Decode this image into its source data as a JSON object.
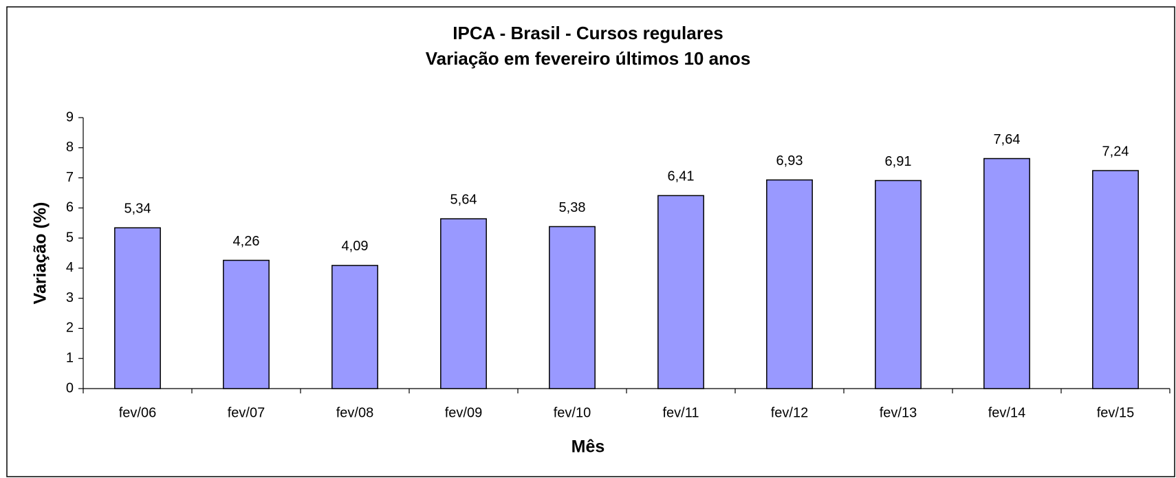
{
  "chart_data": {
    "type": "bar",
    "title": "IPCA - Brasil - Cursos regulares",
    "subtitle": "Variação em fevereiro últimos 10 anos",
    "x_label": "Mês",
    "y_label": "Variação (%)",
    "categories": [
      "fev/06",
      "fev/07",
      "fev/08",
      "fev/09",
      "fev/10",
      "fev/11",
      "fev/12",
      "fev/13",
      "fev/14",
      "fev/15"
    ],
    "values": [
      5.34,
      4.26,
      4.09,
      5.64,
      5.38,
      6.41,
      6.93,
      6.91,
      7.64,
      7.24
    ],
    "value_labels": [
      "5,34",
      "4,26",
      "4,09",
      "5,64",
      "5,38",
      "6,41",
      "6,93",
      "6,91",
      "7,64",
      "7,24"
    ],
    "color": "#9999ff",
    "ylim": [
      0,
      9
    ],
    "yticks": [
      0,
      1,
      2,
      3,
      4,
      5,
      6,
      7,
      8,
      9
    ],
    "grid": false
  }
}
